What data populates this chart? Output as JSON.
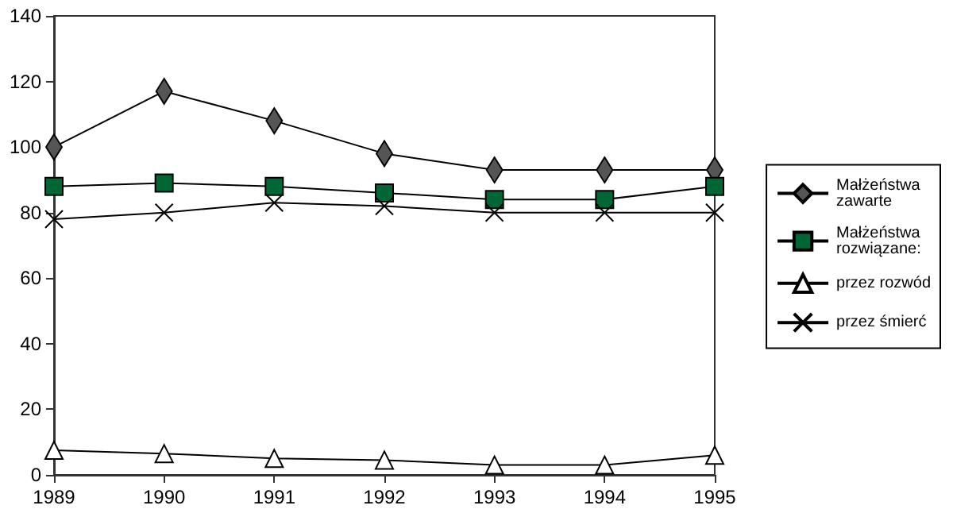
{
  "chart_data": {
    "type": "line",
    "categories": [
      "1989",
      "1990",
      "1991",
      "1992",
      "1993",
      "1994",
      "1995"
    ],
    "series": [
      {
        "name": "Małżeństwa zawarte",
        "color": "#555555",
        "marker": "diamond",
        "values": [
          100,
          117,
          108,
          98,
          93,
          93,
          93
        ]
      },
      {
        "name": "Małżeństwa rozwiązane:",
        "color": "#006633",
        "marker": "square",
        "values": [
          88,
          89,
          88,
          86,
          84,
          84,
          88
        ]
      },
      {
        "name": "przez rozwód",
        "color": "#ffffff",
        "marker": "triangle",
        "values": [
          7.5,
          6.5,
          5,
          4.5,
          3,
          3,
          6
        ]
      },
      {
        "name": "przez śmierć",
        "color": "#000000",
        "marker": "cross",
        "values": [
          78,
          80,
          83,
          82,
          80,
          80,
          80
        ]
      }
    ],
    "ylim": [
      0,
      140
    ],
    "yticks": [
      0,
      20,
      40,
      60,
      80,
      100,
      120,
      140
    ],
    "grid": false,
    "legend": "right"
  }
}
